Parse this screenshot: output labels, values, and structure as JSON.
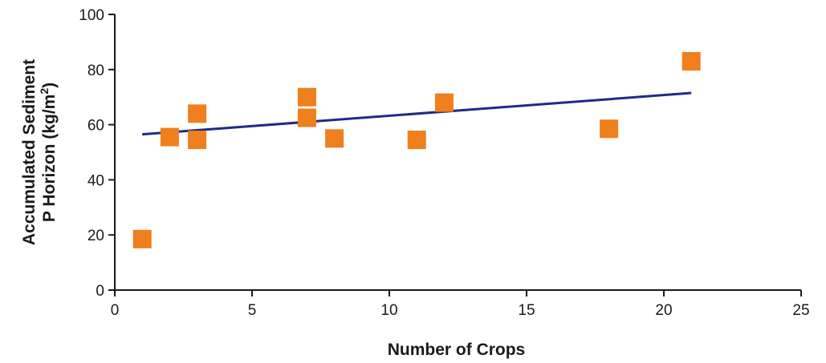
{
  "chart_data": {
    "type": "scatter",
    "xlabel": "Number of Crops",
    "ylabel_line1": "Accumulated Sediment",
    "ylabel_line2_main": "P Horizon (kg/m",
    "ylabel_line2_sup": "2",
    "ylabel_line2_end": ")",
    "xlim": [
      0,
      25
    ],
    "ylim": [
      0,
      100
    ],
    "xticks": [
      0,
      5,
      10,
      15,
      20,
      25
    ],
    "yticks": [
      0,
      20,
      40,
      60,
      80,
      100
    ],
    "grid": false,
    "legend": "none",
    "series": [
      {
        "marker": "square",
        "color": "#f07f1d",
        "x": [
          1,
          2,
          3,
          3,
          7,
          7,
          8,
          11,
          12,
          18,
          21
        ],
        "y": [
          18.5,
          55.5,
          64,
          54.5,
          70,
          62.5,
          55,
          54.5,
          68,
          58.5,
          83
        ]
      }
    ],
    "trendline": {
      "type": "linear",
      "color": "#1f2a8a",
      "x": [
        1,
        21
      ],
      "y": [
        56.5,
        71.5
      ]
    }
  }
}
